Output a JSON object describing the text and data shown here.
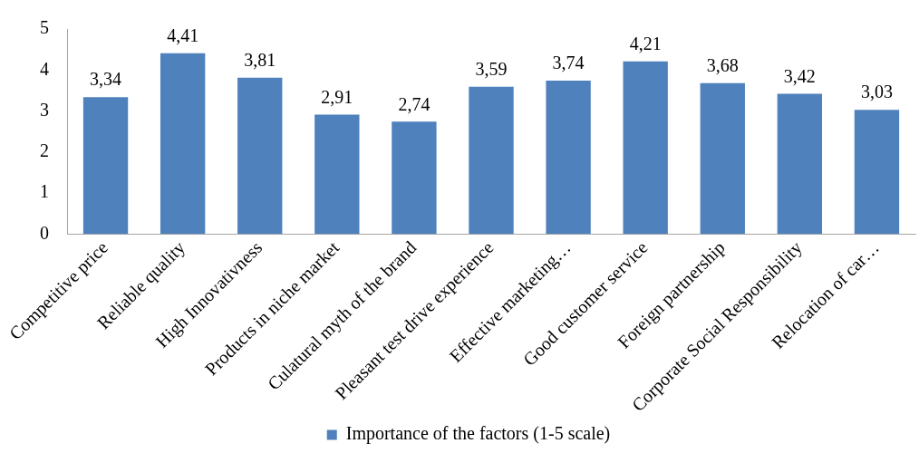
{
  "chart_data": {
    "type": "bar",
    "categories": [
      "Competitive price",
      "Reliable quality",
      "High Innovativness",
      "Products in niche market",
      "Culatural myth of the brand",
      "Pleasant test drive experience",
      "Effective marketing…",
      "Good customer service",
      "Foreign partnership",
      "Corporate Social Responsibility",
      "Relocation of car…"
    ],
    "series": [
      {
        "name": "Importance of the factors (1-5 scale)",
        "color": "#4f81bd",
        "values": [
          3.34,
          4.41,
          3.81,
          2.91,
          2.74,
          3.59,
          3.74,
          4.21,
          3.68,
          3.42,
          3.03
        ],
        "value_labels": [
          "3,34",
          "4,41",
          "3,81",
          "2,91",
          "2,74",
          "3,59",
          "3,74",
          "4,21",
          "3,68",
          "3,42",
          "3,03"
        ]
      }
    ],
    "ylim": [
      0,
      5
    ],
    "yticks": [
      0,
      1,
      2,
      3,
      4,
      5
    ],
    "legend": "bottom"
  }
}
